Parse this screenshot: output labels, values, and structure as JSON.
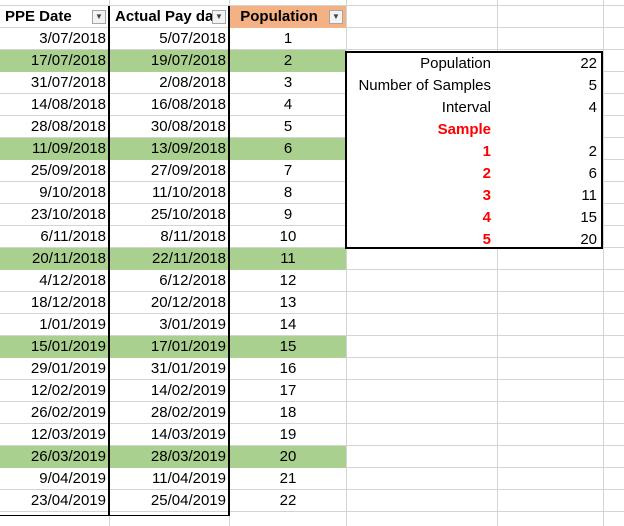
{
  "header": {
    "col_a": "PPE Date",
    "col_b": "Actual Pay da",
    "col_c": "Population"
  },
  "rows": [
    {
      "ppe": "3/07/2018",
      "pay": "5/07/2018",
      "pop": "1",
      "highlight": false
    },
    {
      "ppe": "17/07/2018",
      "pay": "19/07/2018",
      "pop": "2",
      "highlight": true
    },
    {
      "ppe": "31/07/2018",
      "pay": "2/08/2018",
      "pop": "3",
      "highlight": false
    },
    {
      "ppe": "14/08/2018",
      "pay": "16/08/2018",
      "pop": "4",
      "highlight": false
    },
    {
      "ppe": "28/08/2018",
      "pay": "30/08/2018",
      "pop": "5",
      "highlight": false
    },
    {
      "ppe": "11/09/2018",
      "pay": "13/09/2018",
      "pop": "6",
      "highlight": true
    },
    {
      "ppe": "25/09/2018",
      "pay": "27/09/2018",
      "pop": "7",
      "highlight": false
    },
    {
      "ppe": "9/10/2018",
      "pay": "11/10/2018",
      "pop": "8",
      "highlight": false
    },
    {
      "ppe": "23/10/2018",
      "pay": "25/10/2018",
      "pop": "9",
      "highlight": false
    },
    {
      "ppe": "6/11/2018",
      "pay": "8/11/2018",
      "pop": "10",
      "highlight": false
    },
    {
      "ppe": "20/11/2018",
      "pay": "22/11/2018",
      "pop": "11",
      "highlight": true
    },
    {
      "ppe": "4/12/2018",
      "pay": "6/12/2018",
      "pop": "12",
      "highlight": false
    },
    {
      "ppe": "18/12/2018",
      "pay": "20/12/2018",
      "pop": "13",
      "highlight": false
    },
    {
      "ppe": "1/01/2019",
      "pay": "3/01/2019",
      "pop": "14",
      "highlight": false
    },
    {
      "ppe": "15/01/2019",
      "pay": "17/01/2019",
      "pop": "15",
      "highlight": true
    },
    {
      "ppe": "29/01/2019",
      "pay": "31/01/2019",
      "pop": "16",
      "highlight": false
    },
    {
      "ppe": "12/02/2019",
      "pay": "14/02/2019",
      "pop": "17",
      "highlight": false
    },
    {
      "ppe": "26/02/2019",
      "pay": "28/02/2019",
      "pop": "18",
      "highlight": false
    },
    {
      "ppe": "12/03/2019",
      "pay": "14/03/2019",
      "pop": "19",
      "highlight": false
    },
    {
      "ppe": "26/03/2019",
      "pay": "28/03/2019",
      "pop": "20",
      "highlight": true
    },
    {
      "ppe": "9/04/2019",
      "pay": "11/04/2019",
      "pop": "21",
      "highlight": false
    },
    {
      "ppe": "23/04/2019",
      "pay": "25/04/2019",
      "pop": "22",
      "highlight": false
    }
  ],
  "summary": {
    "population_label": "Population",
    "population_value": "22",
    "samples_label": "Number of Samples",
    "samples_value": "5",
    "interval_label": "Interval",
    "interval_value": "4",
    "sample_header": "Sample",
    "samples": [
      {
        "n": "1",
        "value": "2"
      },
      {
        "n": "2",
        "value": "6"
      },
      {
        "n": "3",
        "value": "11"
      },
      {
        "n": "4",
        "value": "15"
      },
      {
        "n": "5",
        "value": "20"
      }
    ]
  },
  "colors": {
    "highlight": "#a9d08e",
    "population_header": "#f4b183",
    "sample_text": "#ff0000"
  },
  "icons": {
    "filter": "filter-dropdown-icon"
  }
}
